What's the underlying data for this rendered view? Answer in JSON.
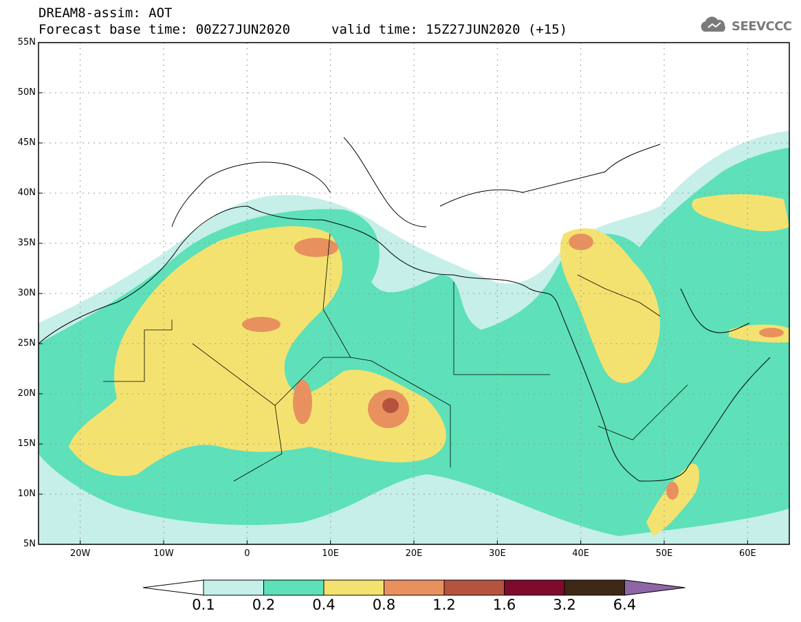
{
  "header": {
    "model_line": "DREAM8-assim: AOT",
    "base_time": "Forecast base time: 00Z27JUN2020",
    "valid_time": "valid time: 15Z27JUN2020 (+15)"
  },
  "logo": {
    "text": "SEEVCCC",
    "icon": "cloud-logo-icon"
  },
  "map": {
    "extent": {
      "lon": [
        -25,
        65
      ],
      "lat": [
        5,
        55
      ]
    },
    "lat_labels": [
      "55N",
      "50N",
      "45N",
      "40N",
      "35N",
      "30N",
      "25N",
      "20N",
      "15N",
      "10N",
      "5N"
    ],
    "lon_labels": [
      "20W",
      "10W",
      "0",
      "10E",
      "20E",
      "30E",
      "40E",
      "50E",
      "60E"
    ]
  },
  "colorbar": {
    "labels": [
      "0.1",
      "0.2",
      "0.4",
      "0.8",
      "1.2",
      "1.6",
      "3.2",
      "6.4"
    ],
    "colors": [
      "#c5efe8",
      "#5ee0b8",
      "#f4e270",
      "#e8915e",
      "#b5533f",
      "#7e0b2d",
      "#3e2816",
      "#8e66a8"
    ]
  }
}
